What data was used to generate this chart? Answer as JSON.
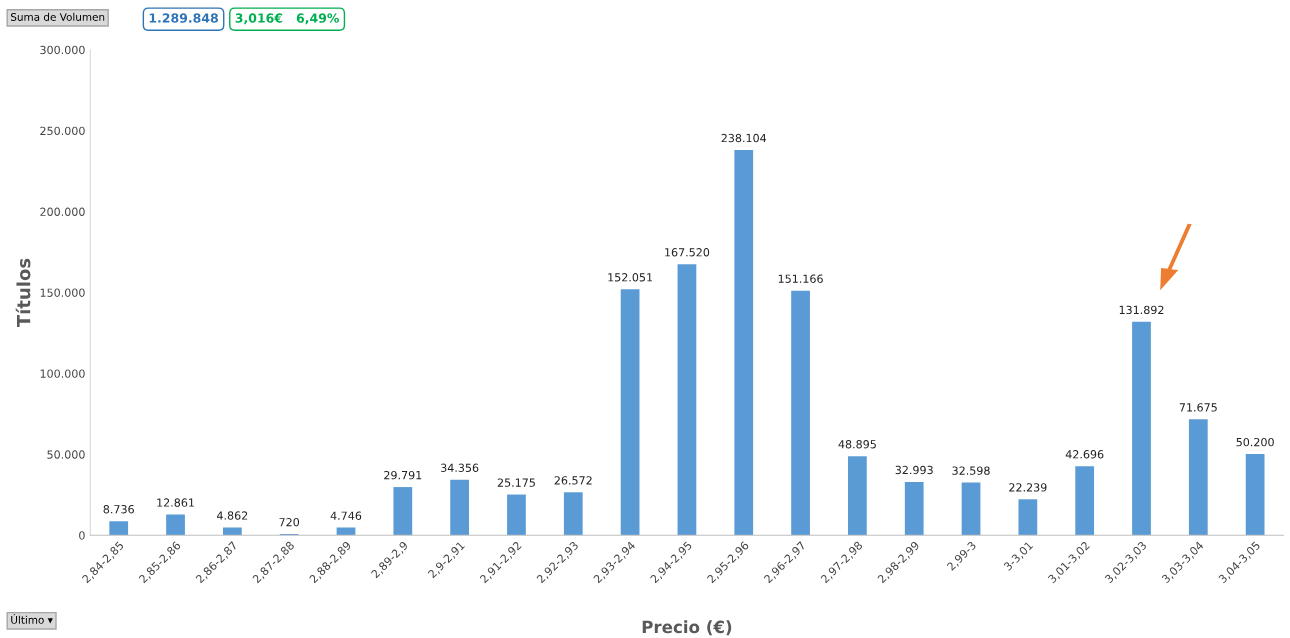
{
  "chart_data": {
    "type": "bar",
    "xlabel": "Precio (€)",
    "ylabel": "Títulos",
    "categories": [
      "2,84-2,85",
      "2,85-2,86",
      "2,86-2,87",
      "2,87-2,88",
      "2,88-2,89",
      "2,89-2,9",
      "2,9-2,91",
      "2,91-2,92",
      "2,92-2,93",
      "2,93-2,94",
      "2,94-2,95",
      "2,95-2,96",
      "2,96-2,97",
      "2,97-2,98",
      "2,98-2,99",
      "2,99-3",
      "3-3,01",
      "3,01-3,02",
      "3,02-3,03",
      "3,03-3,04",
      "3,04-3,05"
    ],
    "values": [
      8736,
      12861,
      4862,
      720,
      4746,
      29791,
      34356,
      25175,
      26572,
      152051,
      167520,
      238104,
      151166,
      48895,
      32993,
      32598,
      22239,
      42696,
      131892,
      71675,
      50200
    ],
    "value_labels": [
      "8.736",
      "12.861",
      "4.862",
      "720",
      "4.746",
      "29.791",
      "34.356",
      "25.175",
      "26.572",
      "152.051",
      "167.520",
      "238.104",
      "151.166",
      "48.895",
      "32.993",
      "32.598",
      "22.239",
      "42.696",
      "131.892",
      "71.675",
      "50.200"
    ],
    "color": "#5b9bd5",
    "ylim": [
      0,
      300000
    ],
    "yticks": [
      0,
      {
        "value": 50000,
        "label": "50.000"
      },
      {
        "value": 100000,
        "label": "100.000"
      },
      {
        "value": 150000,
        "label": "150.000"
      },
      {
        "value": 200000,
        "label": "200.000"
      },
      {
        "value": 250000,
        "label": "250.000"
      },
      {
        "value": 300000,
        "label": "300.000"
      }
    ],
    "grid": false,
    "legend": false,
    "annotations": [
      "Suma de Volumen",
      "1.289.848",
      "3,016€   6,49%",
      "Último ▾"
    ]
  }
}
